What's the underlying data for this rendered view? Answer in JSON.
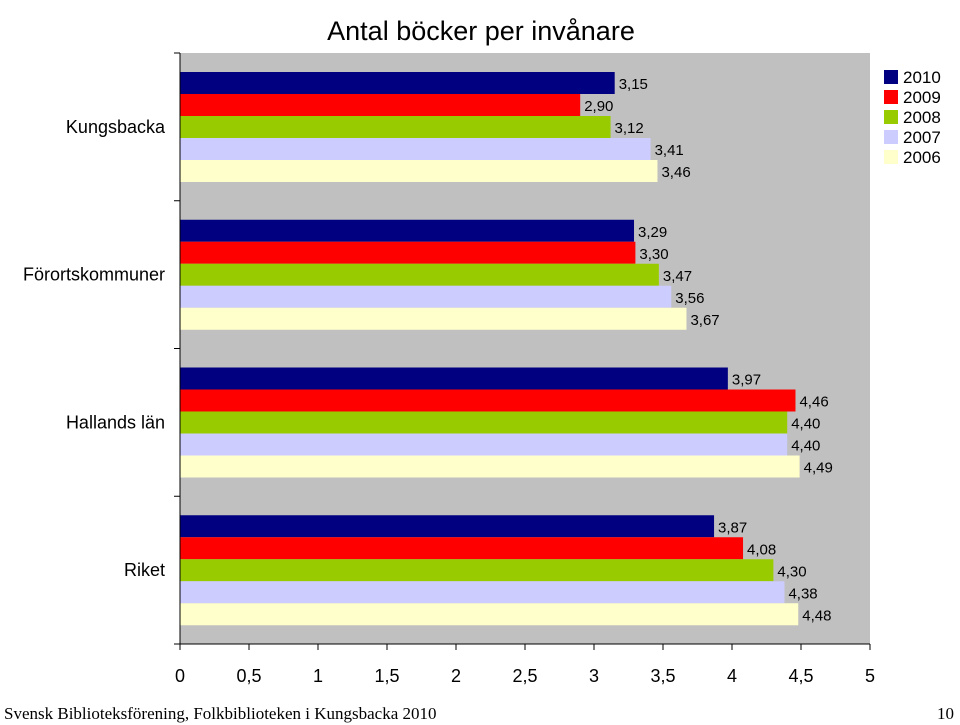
{
  "chart_data": {
    "type": "bar",
    "orientation": "horizontal",
    "title": "Antal böcker per invånare",
    "categories": [
      "Kungsbacka",
      "Förortskommuner",
      "Hallands län",
      "Riket"
    ],
    "series": [
      {
        "name": "2010",
        "color": "#000080",
        "values": [
          3.15,
          3.29,
          3.97,
          3.87
        ],
        "labels": [
          "3,15",
          "3,29",
          "3,97",
          "3,87"
        ]
      },
      {
        "name": "2009",
        "color": "#ff0000",
        "values": [
          2.9,
          3.3,
          4.46,
          4.08
        ],
        "labels": [
          "2,90",
          "3,30",
          "4,46",
          "4,08"
        ]
      },
      {
        "name": "2008",
        "color": "#99cc00",
        "values": [
          3.12,
          3.47,
          4.4,
          4.3
        ],
        "labels": [
          "3,12",
          "3,47",
          "4,40",
          "4,30"
        ]
      },
      {
        "name": "2007",
        "color": "#ccccff",
        "values": [
          3.41,
          3.56,
          4.4,
          4.38
        ],
        "labels": [
          "3,41",
          "3,56",
          "4,40",
          "4,38"
        ]
      },
      {
        "name": "2006",
        "color": "#ffffcc",
        "values": [
          3.46,
          3.67,
          4.49,
          4.48
        ],
        "labels": [
          "3,46",
          "3,67",
          "4,49",
          "4,48"
        ]
      }
    ],
    "xlim": [
      0,
      5
    ],
    "xticks": [
      0,
      0.5,
      1,
      1.5,
      2,
      2.5,
      3,
      3.5,
      4,
      4.5,
      5
    ],
    "xtick_labels": [
      "0",
      "0,5",
      "1",
      "1,5",
      "2",
      "2,5",
      "3",
      "3,5",
      "4",
      "4,5",
      "5"
    ],
    "legend_position": "top-right",
    "grid": false
  },
  "footer": {
    "left": "Svensk Biblioteksförening, Folkbiblioteken i Kungsbacka 2010",
    "right": "10"
  }
}
